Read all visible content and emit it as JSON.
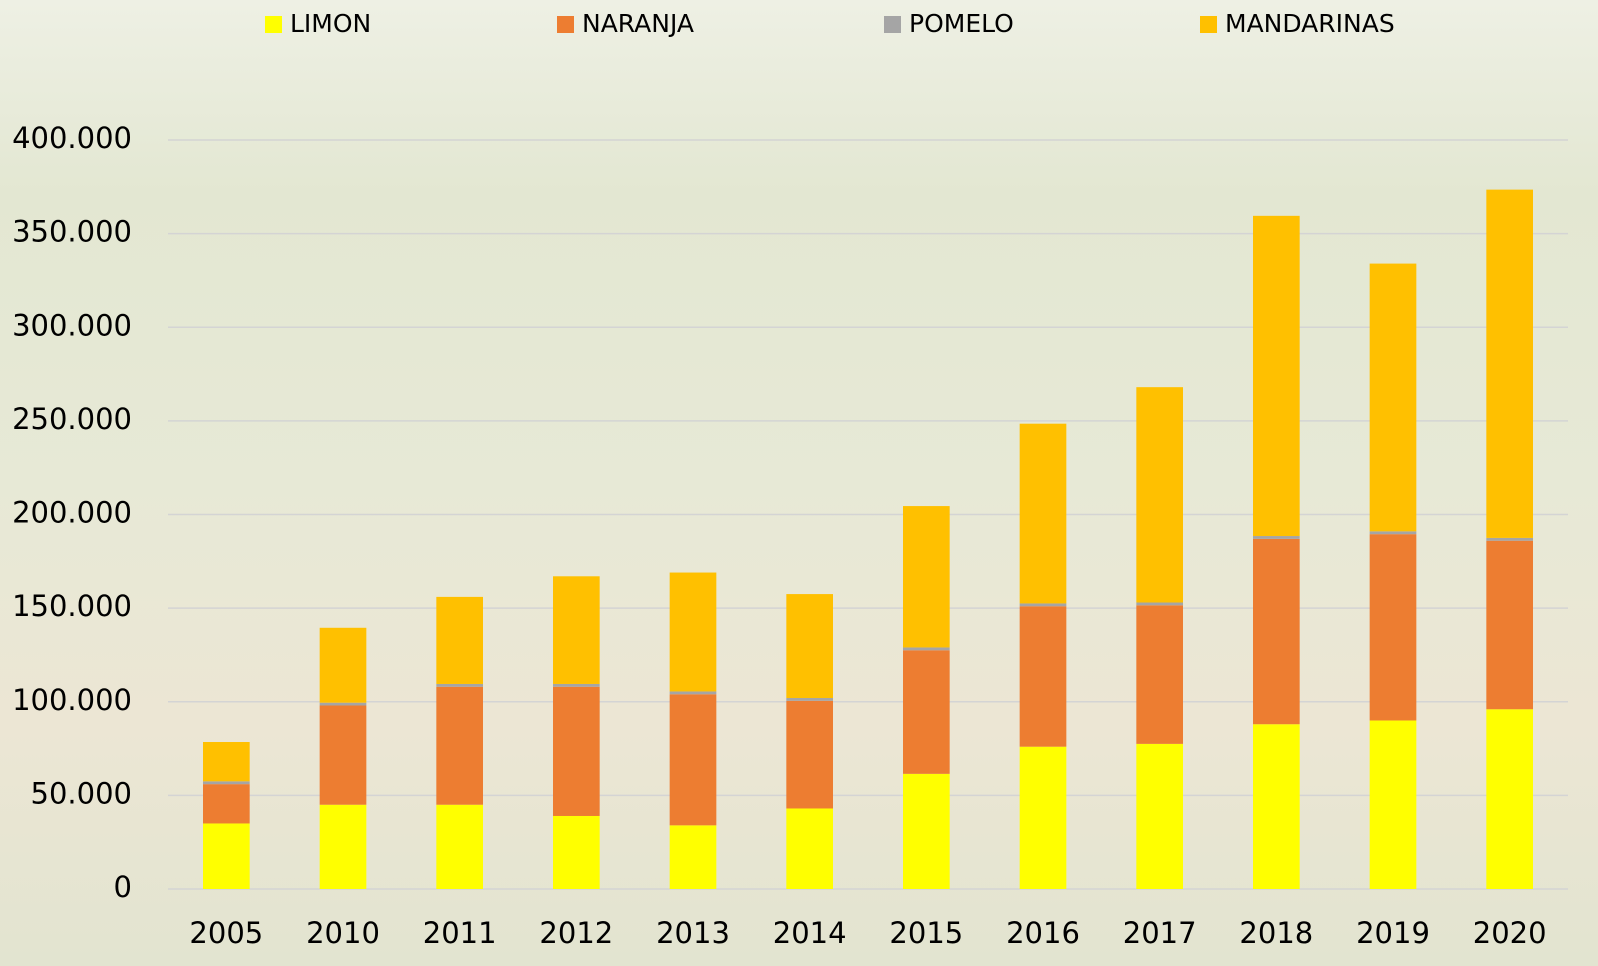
{
  "chart_data": {
    "type": "stacked_bar",
    "categories": [
      "2005",
      "2010",
      "2011",
      "2012",
      "2013",
      "2014",
      "2015",
      "2016",
      "2017",
      "2018",
      "2019",
      "2020"
    ],
    "series": [
      {
        "name": "LIMON",
        "color": "#ffff00",
        "values": [
          35000,
          45000,
          45000,
          39000,
          34000,
          43000,
          61500,
          76000,
          77500,
          88000,
          90000,
          96000
        ]
      },
      {
        "name": "NARANJA",
        "color": "#ed7d31",
        "values": [
          21000,
          53000,
          63000,
          69000,
          70000,
          57500,
          66000,
          75000,
          74000,
          99000,
          99500,
          90000
        ]
      },
      {
        "name": "POMELO",
        "color": "#a5a5a5",
        "values": [
          1500,
          1500,
          1500,
          1500,
          1500,
          1500,
          1500,
          1500,
          1500,
          1500,
          1500,
          1500
        ]
      },
      {
        "name": "MANDARINAS",
        "color": "#ffc000",
        "values": [
          21000,
          40000,
          46500,
          57500,
          63500,
          55500,
          75500,
          96000,
          115000,
          171000,
          143000,
          186000
        ]
      }
    ],
    "ylim": [
      0,
      400000
    ],
    "yticks": [
      0,
      {
        "value": 50000,
        "label": "50.000"
      },
      {
        "value": 100000,
        "label": "100.000"
      },
      {
        "value": 150000,
        "label": "150.000"
      },
      {
        "value": 200000,
        "label": "200.000"
      },
      {
        "value": 250000,
        "label": "250.000"
      },
      {
        "value": 300000,
        "label": "300.000"
      },
      {
        "value": 350000,
        "label": "350.000"
      },
      {
        "value": 400000,
        "label": "400.000"
      }
    ],
    "grid": true,
    "legend": "top"
  }
}
